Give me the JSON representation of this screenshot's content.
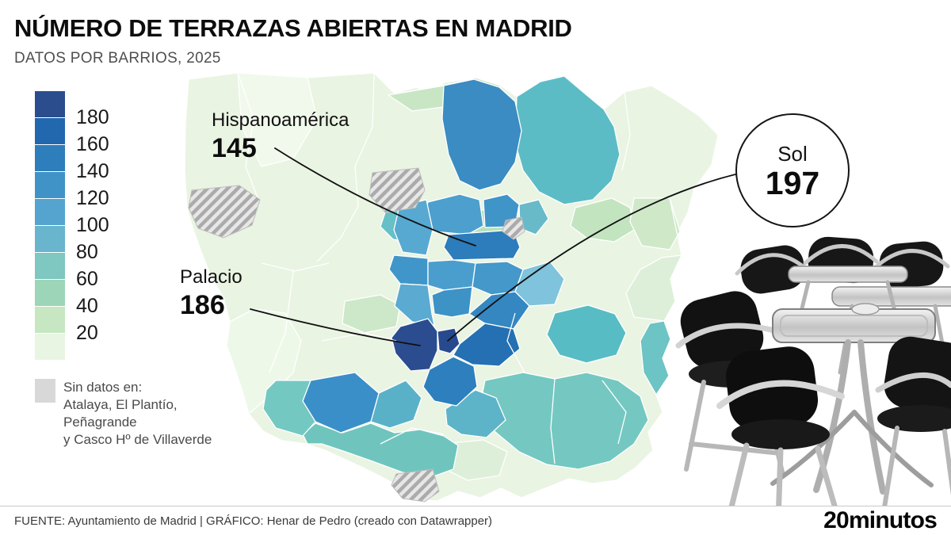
{
  "header": {
    "title": "NÚMERO DE TERRAZAS ABIERTAS EN MADRID",
    "subtitle": "DATOS POR BARRIOS, 2025"
  },
  "legend": {
    "labels": [
      "180",
      "160",
      "140",
      "120",
      "100",
      "80",
      "60",
      "40",
      "20"
    ],
    "colors": [
      "#2b4d8e",
      "#2268ae",
      "#2e7ebb",
      "#3f93c7",
      "#54a4cf",
      "#68b5cd",
      "#7fc7c1",
      "#9cd5b7",
      "#c6e7c1",
      "#e9f5e3"
    ],
    "no_data_color": "#d8d8d8",
    "no_data_lines": [
      "Sin datos en:",
      "Atalaya, El Plantío,",
      "Peñagrande",
      "y Casco Hº de Villaverde"
    ]
  },
  "annotations": {
    "hispanoamerica": {
      "label": "Hispanoamérica",
      "value": "145"
    },
    "sol": {
      "label": "Sol",
      "value": "197"
    },
    "palacio": {
      "label": "Palacio",
      "value": "186"
    }
  },
  "footer": {
    "text": "FUENTE: Ayuntamiento de Madrid  |  GRÁFICO: Henar de Pedro (creado con Datawrapper)",
    "logo_bold": "20",
    "logo_rest": "minutos"
  },
  "chart_data": {
    "type": "choropleth_map",
    "title": "NÚMERO DE TERRAZAS ABIERTAS EN MADRID",
    "subtitle": "DATOS POR BARRIOS, 2025",
    "region": "Madrid, datos por barrios",
    "unit": "terrazas abiertas",
    "legend": {
      "scale_boundaries": [
        180,
        160,
        140,
        120,
        100,
        80,
        60,
        40,
        20
      ],
      "colors_dark_to_light": [
        "#2b4d8e",
        "#2268ae",
        "#2e7ebb",
        "#3f93c7",
        "#54a4cf",
        "#68b5cd",
        "#7fc7c1",
        "#9cd5b7",
        "#c6e7c1",
        "#e9f5e3"
      ],
      "no_data_note": "Sin datos en: Atalaya, El Plantío, Peñagrande y Casco Hº de Villaverde"
    },
    "annotated_values": [
      {
        "barrio": "Hispanoamérica",
        "value": 145
      },
      {
        "barrio": "Sol",
        "value": 197
      },
      {
        "barrio": "Palacio",
        "value": 186
      }
    ],
    "source": "FUENTE: Ayuntamiento de Madrid",
    "credit": "GRÁFICO: Henar de Pedro (creado con Datawrapper)"
  }
}
